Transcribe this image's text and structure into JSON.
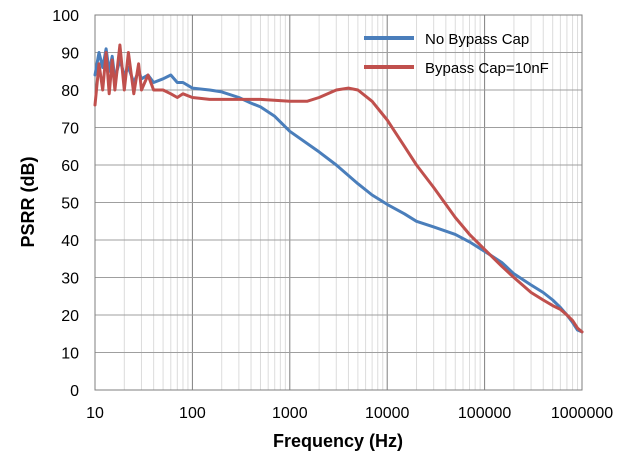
{
  "chart_data": {
    "type": "line",
    "xlabel": "Frequency (Hz)",
    "ylabel": "PSRR (dB)",
    "x_scale": "log",
    "xlim": [
      10,
      1000000
    ],
    "ylim": [
      0,
      100
    ],
    "grid": "major-and-minor-vertical, major-horizontal",
    "legend_position": "top-right",
    "x_ticks": [
      "10",
      "100",
      "1000",
      "10000",
      "100000",
      "1000000"
    ],
    "y_ticks": [
      "0",
      "10",
      "20",
      "30",
      "40",
      "50",
      "60",
      "70",
      "80",
      "90",
      "100"
    ],
    "series": [
      {
        "name": "No Bypass Cap",
        "color": "#4a7ebb",
        "points": [
          [
            10,
            84
          ],
          [
            11,
            90
          ],
          [
            12,
            86
          ],
          [
            13,
            91
          ],
          [
            14,
            85
          ],
          [
            15,
            89
          ],
          [
            16,
            83
          ],
          [
            18,
            88
          ],
          [
            20,
            84
          ],
          [
            22,
            86
          ],
          [
            25,
            82
          ],
          [
            28,
            85
          ],
          [
            30,
            83
          ],
          [
            35,
            84
          ],
          [
            40,
            82
          ],
          [
            50,
            83
          ],
          [
            60,
            84
          ],
          [
            70,
            82
          ],
          [
            80,
            82
          ],
          [
            100,
            80.5
          ],
          [
            150,
            80
          ],
          [
            200,
            79.5
          ],
          [
            300,
            78
          ],
          [
            400,
            76.5
          ],
          [
            500,
            75.5
          ],
          [
            700,
            73
          ],
          [
            1000,
            69
          ],
          [
            2000,
            63.5
          ],
          [
            3000,
            60
          ],
          [
            5000,
            55
          ],
          [
            7000,
            52
          ],
          [
            10000,
            49.5
          ],
          [
            15000,
            47
          ],
          [
            20000,
            45
          ],
          [
            30000,
            43.5
          ],
          [
            50000,
            41.5
          ],
          [
            70000,
            39.5
          ],
          [
            100000,
            37
          ],
          [
            150000,
            34
          ],
          [
            200000,
            31
          ],
          [
            300000,
            28
          ],
          [
            400000,
            26
          ],
          [
            500000,
            24
          ],
          [
            600000,
            22
          ],
          [
            700000,
            20
          ],
          [
            800000,
            18
          ],
          [
            900000,
            16
          ],
          [
            1000000,
            15.5
          ]
        ]
      },
      {
        "name": "Bypass Cap=10nF",
        "color": "#c0504d",
        "points": [
          [
            10,
            76
          ],
          [
            11,
            87
          ],
          [
            12,
            80
          ],
          [
            13,
            90
          ],
          [
            14,
            79
          ],
          [
            15,
            88
          ],
          [
            16,
            80
          ],
          [
            18,
            92
          ],
          [
            20,
            80
          ],
          [
            22,
            90
          ],
          [
            25,
            79
          ],
          [
            28,
            87
          ],
          [
            30,
            80
          ],
          [
            35,
            84
          ],
          [
            40,
            80
          ],
          [
            50,
            80
          ],
          [
            60,
            79
          ],
          [
            70,
            78
          ],
          [
            80,
            79
          ],
          [
            100,
            78
          ],
          [
            150,
            77.5
          ],
          [
            200,
            77.5
          ],
          [
            300,
            77.5
          ],
          [
            500,
            77.5
          ],
          [
            1000,
            77
          ],
          [
            1500,
            77
          ],
          [
            2000,
            78
          ],
          [
            3000,
            80
          ],
          [
            4000,
            80.5
          ],
          [
            5000,
            80
          ],
          [
            7000,
            77
          ],
          [
            10000,
            72
          ],
          [
            15000,
            65
          ],
          [
            20000,
            60
          ],
          [
            30000,
            54
          ],
          [
            50000,
            46
          ],
          [
            70000,
            41.5
          ],
          [
            100000,
            37.5
          ],
          [
            150000,
            33
          ],
          [
            200000,
            30
          ],
          [
            300000,
            26
          ],
          [
            400000,
            24
          ],
          [
            500000,
            22.5
          ],
          [
            600000,
            21.5
          ],
          [
            700000,
            20
          ],
          [
            800000,
            18.5
          ],
          [
            900000,
            16.5
          ],
          [
            1000000,
            15.5
          ]
        ]
      }
    ]
  }
}
